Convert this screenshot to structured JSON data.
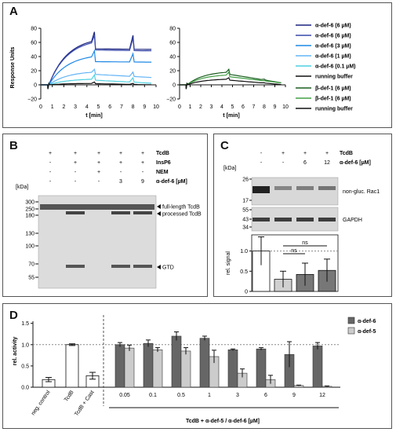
{
  "panels": {
    "A": "A",
    "B": "B",
    "C": "C",
    "D": "D"
  },
  "panel_a": {
    "ylabel": "Response Units",
    "xlabel": "t [min]",
    "yticks": [
      "80",
      "60",
      "40",
      "20",
      "0",
      "−20"
    ],
    "xticks": [
      "0",
      "1",
      "2",
      "3",
      "4",
      "5",
      "6",
      "7",
      "8",
      "9",
      "10"
    ],
    "legend_left": [
      {
        "label": "α-def-6 (6 µM)",
        "color": "#1a237e"
      },
      {
        "label": "α-def-6 (6 µM)",
        "color": "#3949ab"
      },
      {
        "label": "α-def-6 (3 µM)",
        "color": "#1e88e5"
      },
      {
        "label": "α-def-6 (1 µM)",
        "color": "#64b5f6"
      },
      {
        "label": "α-def-6 (0.1 µM)",
        "color": "#4dd0e1"
      },
      {
        "label": "running buffer",
        "color": "#111111"
      }
    ],
    "legend_right": [
      {
        "label": "β-def-1 (6 µM)",
        "color": "#1b5e20"
      },
      {
        "label": "β-def-1 (6 µM)",
        "color": "#43a047"
      },
      {
        "label": "running buffer",
        "color": "#111111"
      }
    ]
  },
  "panel_b": {
    "rows": [
      {
        "label": "TcdB",
        "values": [
          "+",
          "+",
          "+",
          "+",
          "+"
        ]
      },
      {
        "label": "InsP6",
        "values": [
          "-",
          "+",
          "+",
          "+",
          "+"
        ]
      },
      {
        "label": "NEM",
        "values": [
          "-",
          "-",
          "+",
          "-",
          "-"
        ]
      },
      {
        "label": "α-def-6 [µM]",
        "values": [
          "-",
          "-",
          "-",
          "3",
          "9"
        ]
      }
    ],
    "kda_label": "[kDa]",
    "markers": [
      "300",
      "250",
      "180",
      "130",
      "100",
      "70",
      "55"
    ],
    "band_labels": [
      "full-length TcdB",
      "processed TcdB",
      "GTD"
    ]
  },
  "panel_c": {
    "rows": [
      {
        "label": "TcdB",
        "values": [
          "-",
          "+",
          "+",
          "+"
        ]
      },
      {
        "label": "α-def-6 [µM]",
        "values": [
          "-",
          "-",
          "6",
          "12"
        ]
      }
    ],
    "kda_label": "[kDa]",
    "markers_top": [
      "26",
      "17"
    ],
    "markers_bottom": [
      "55",
      "43",
      "34"
    ],
    "blot_labels": [
      "non-gluc. Rac1",
      "GAPDH"
    ],
    "ylabel": "rel. signal",
    "ns": [
      "ns",
      "ns"
    ],
    "yticks": [
      "1.0",
      "0.5",
      "0"
    ],
    "chart_data": {
      "type": "bar",
      "values": [
        1.0,
        0.3,
        0.42,
        0.52
      ],
      "errors": [
        0.35,
        0.2,
        0.28,
        0.28
      ],
      "ylim": [
        0,
        1.4
      ]
    }
  },
  "panel_d": {
    "ylabel": "rel. activity",
    "xlabel": "TcdB + α-def-5 / α-def-6 [µM]",
    "yticks": [
      "1.5",
      "1.0",
      "0.5",
      "0.0"
    ],
    "legend": [
      {
        "label": "α-def-6",
        "color": "#666666"
      },
      {
        "label": "α-def-5",
        "color": "#cccccc"
      }
    ],
    "chart_data": {
      "type": "bar",
      "ylim": [
        0,
        1.55
      ],
      "controls": [
        {
          "label": "neg. control",
          "value": 0.18,
          "error": 0.05
        },
        {
          "label": "TcdB",
          "value": 1.0,
          "error": 0.02
        },
        {
          "label": "TcdB + Cast",
          "value": 0.27,
          "error": 0.08
        }
      ],
      "categories": [
        "0.05",
        "0.1",
        "0.5",
        "1",
        "3",
        "6",
        "9",
        "12"
      ],
      "series": [
        {
          "name": "α-def-6",
          "values": [
            1.0,
            1.03,
            1.2,
            1.15,
            0.88,
            0.9,
            0.77,
            0.97
          ],
          "errors": [
            0.05,
            0.08,
            0.1,
            0.05,
            0.02,
            0.03,
            0.3,
            0.08
          ]
        },
        {
          "name": "α-def-5",
          "values": [
            0.92,
            0.88,
            0.85,
            0.72,
            0.33,
            0.18,
            0.04,
            0.02
          ],
          "errors": [
            0.07,
            0.05,
            0.08,
            0.15,
            0.1,
            0.1,
            0.01,
            0.01
          ]
        }
      ]
    }
  }
}
